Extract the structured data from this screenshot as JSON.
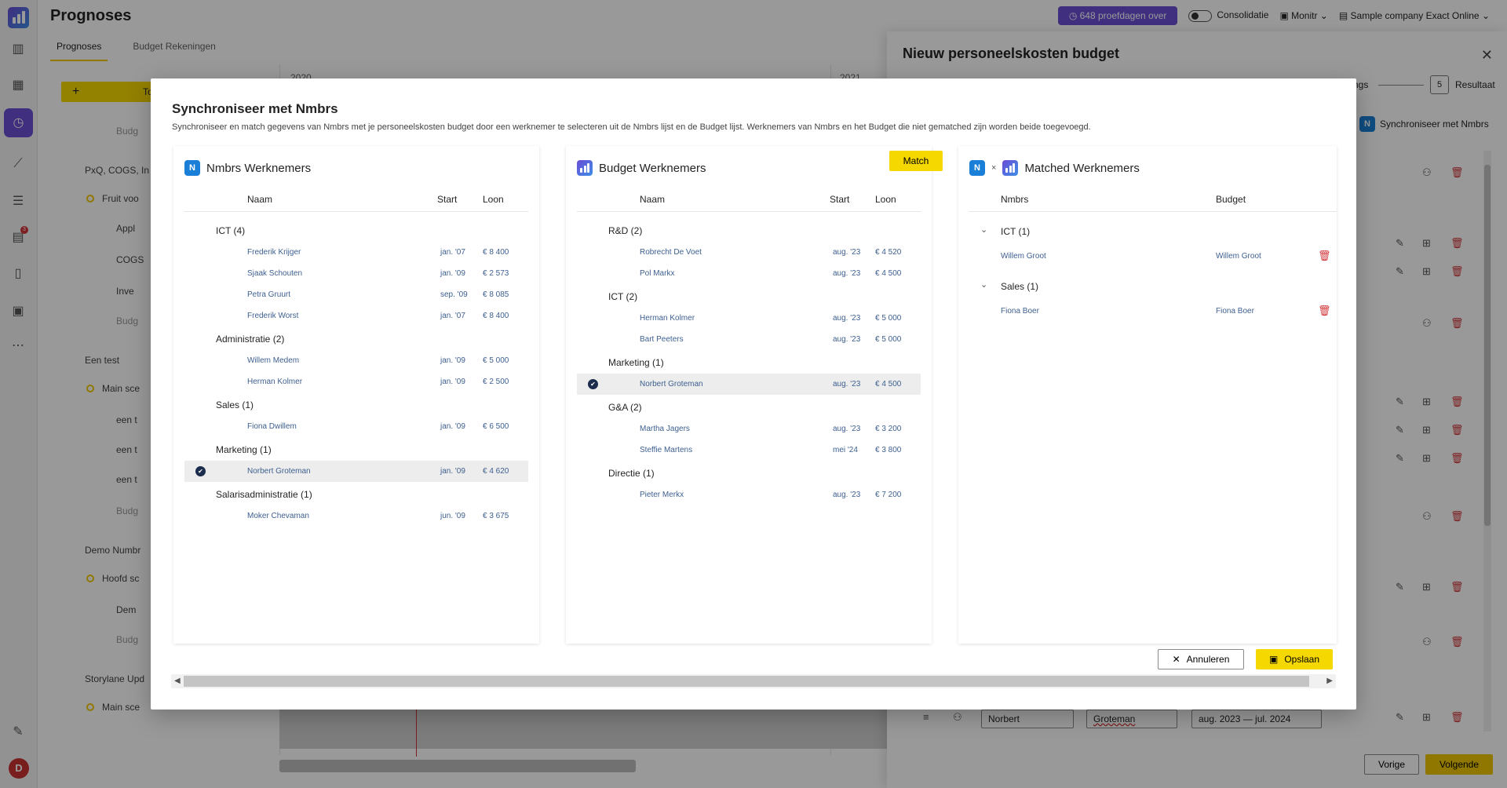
{
  "app": {
    "title": "Prognoses",
    "tabs": [
      "Prognoses",
      "Budget Rekeningen"
    ],
    "trial_label": "648 proefdagen over",
    "consolidation_label": "Consolidatie",
    "user_short": "Monitr",
    "company": "Sample company Exact Online",
    "avatar_initial": "D",
    "notification_count": "3",
    "years": [
      "2020",
      "2021"
    ],
    "toolbar_button_partial": "To",
    "tree": [
      "Budg",
      "PxQ, COGS, In",
      "Fruit voo",
      "Appl",
      "COGS",
      "Inve",
      "Budg",
      "Een test",
      "Main sce",
      "een t",
      "een t",
      "een t",
      "Budg",
      "Demo Numbr",
      "Hoofd sc",
      "Dem",
      "Budg",
      "Storylane Upd",
      "Main sce"
    ]
  },
  "panel": {
    "title": "Nieuw personeelskosten budget",
    "step_partial": "ngs",
    "step5_number": "5",
    "step5_label": "Resultaat",
    "sync_link": "Synchroniseer met Nmbrs",
    "row_first_name": "Norbert",
    "row_last_name": "Groteman",
    "row_period": "aug. 2023 — jul. 2024",
    "prev_label": "Vorige",
    "next_label": "Volgende"
  },
  "modal": {
    "title": "Synchroniseer met Nmbrs",
    "description": "Synchroniseer en match gegevens van Nmbrs met je personeelskosten budget door een werknemer te selecteren uit de Nmbrs lijst en de Budget lijst. Werknemers van Nmbrs en het Budget die niet gematched zijn worden beide toegevoegd.",
    "cancel_label": "Annuleren",
    "save_label": "Opslaan",
    "nmbrs": {
      "title": "Nmbrs Werknemers",
      "icon_letter": "N",
      "columns": [
        "Naam",
        "Start",
        "Loon"
      ],
      "groups": [
        {
          "name": "ICT (4)",
          "employees": [
            {
              "name": "Frederik Krijger",
              "start": "jan. '07",
              "salary": "€ 8 400",
              "selected": false
            },
            {
              "name": "Sjaak Schouten",
              "start": "jan. '09",
              "salary": "€ 2 573",
              "selected": false
            },
            {
              "name": "Petra Gruurt",
              "start": "sep. '09",
              "salary": "€ 8 085",
              "selected": false
            },
            {
              "name": "Frederik Worst",
              "start": "jan. '07",
              "salary": "€ 8 400",
              "selected": false
            }
          ]
        },
        {
          "name": "Administratie (2)",
          "employees": [
            {
              "name": "Willem Medem",
              "start": "jan. '09",
              "salary": "€ 5 000",
              "selected": false
            },
            {
              "name": "Herman Kolmer",
              "start": "jan. '09",
              "salary": "€ 2 500",
              "selected": false
            }
          ]
        },
        {
          "name": "Sales (1)",
          "employees": [
            {
              "name": "Fiona Dwillem",
              "start": "jan. '09",
              "salary": "€ 6 500",
              "selected": false
            }
          ]
        },
        {
          "name": "Marketing (1)",
          "employees": [
            {
              "name": "Norbert Groteman",
              "start": "jan. '09",
              "salary": "€ 4 620",
              "selected": true
            }
          ]
        },
        {
          "name": "Salarisadministratie (1)",
          "employees": [
            {
              "name": "Moker Chevaman",
              "start": "jun. '09",
              "salary": "€ 3 675",
              "selected": false
            }
          ]
        }
      ]
    },
    "budget": {
      "title": "Budget Werknemers",
      "match_label": "Match",
      "columns": [
        "Naam",
        "Start",
        "Loon"
      ],
      "groups": [
        {
          "name": "R&D (2)",
          "employees": [
            {
              "name": "Robrecht De Voet",
              "start": "aug. '23",
              "salary": "€ 4 520",
              "selected": false
            },
            {
              "name": "Pol Markx",
              "start": "aug. '23",
              "salary": "€ 4 500",
              "selected": false
            }
          ]
        },
        {
          "name": "ICT (2)",
          "employees": [
            {
              "name": "Herman Kolmer",
              "start": "aug. '23",
              "salary": "€ 5 000",
              "selected": false
            },
            {
              "name": "Bart Peeters",
              "start": "aug. '23",
              "salary": "€ 5 000",
              "selected": false
            }
          ]
        },
        {
          "name": "Marketing (1)",
          "employees": [
            {
              "name": "Norbert Groteman",
              "start": "aug. '23",
              "salary": "€ 4 500",
              "selected": true
            }
          ]
        },
        {
          "name": "G&A (2)",
          "employees": [
            {
              "name": "Martha Jagers",
              "start": "aug. '23",
              "salary": "€ 3 200",
              "selected": false
            },
            {
              "name": "Steffie Martens",
              "start": "mei '24",
              "salary": "€ 3 800",
              "selected": false
            }
          ]
        },
        {
          "name": "Directie (1)",
          "employees": [
            {
              "name": "Pieter Merkx",
              "start": "aug. '23",
              "salary": "€ 7 200",
              "selected": false
            }
          ]
        }
      ]
    },
    "matched": {
      "title": "Matched Werknemers",
      "separator": "×",
      "columns": [
        "Nmbrs",
        "Budget"
      ],
      "groups": [
        {
          "name": "ICT (1)",
          "pairs": [
            {
              "nmbrs": "Willem Groot",
              "budget": "Willem Groot"
            }
          ]
        },
        {
          "name": "Sales (1)",
          "pairs": [
            {
              "nmbrs": "Fiona Boer",
              "budget": "Fiona Boer"
            }
          ]
        }
      ]
    }
  }
}
